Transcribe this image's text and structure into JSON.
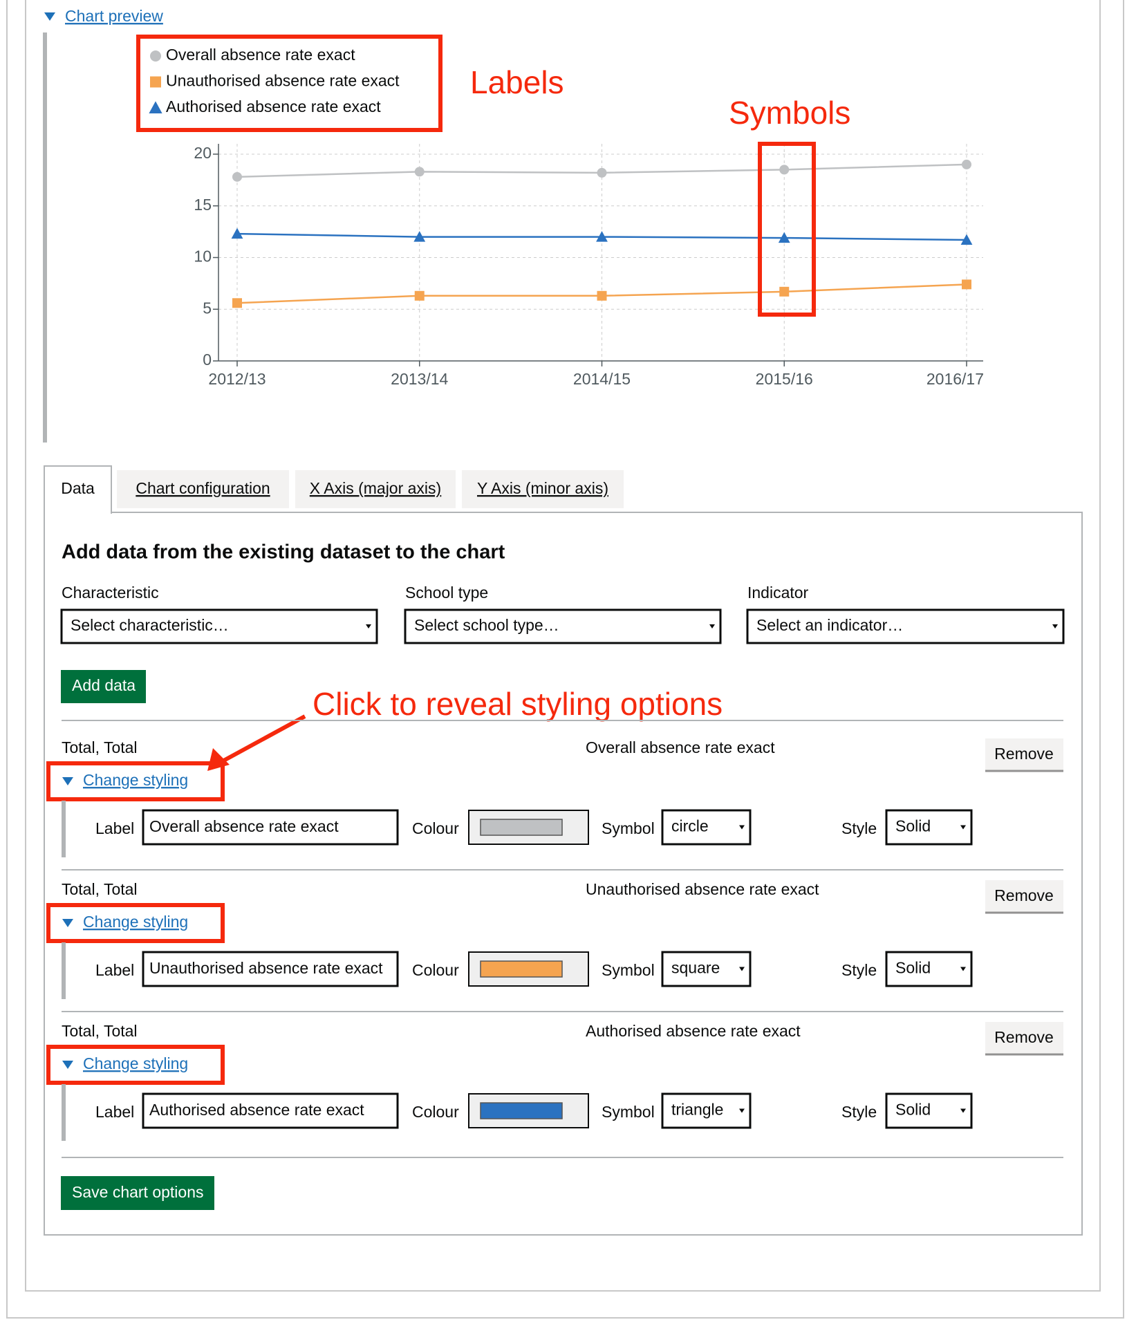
{
  "preview_link": "Chart preview",
  "chart_data": {
    "type": "line",
    "categories": [
      "2012/13",
      "2013/14",
      "2014/15",
      "2015/16",
      "2016/17"
    ],
    "series": [
      {
        "name": "Overall absence rate exact",
        "color": "#bfc1c3",
        "symbol": "circle",
        "values": [
          17.8,
          18.3,
          18.2,
          18.5,
          19.0
        ]
      },
      {
        "name": "Unauthorised absence rate exact",
        "color": "#f5a450",
        "symbol": "square",
        "values": [
          5.6,
          6.3,
          6.3,
          6.7,
          7.4
        ]
      },
      {
        "name": "Authorised absence rate exact",
        "color": "#2b72c0",
        "symbol": "triangle",
        "values": [
          12.3,
          12.0,
          12.0,
          11.9,
          11.7
        ]
      }
    ],
    "ylim": [
      0,
      21
    ],
    "yticks": [
      0,
      5,
      10,
      15,
      20
    ],
    "grid": true
  },
  "annotations": {
    "labels": "Labels",
    "symbols": "Symbols",
    "click": "Click to reveal styling options"
  },
  "tabs": [
    "Data",
    "Chart configuration",
    "X Axis (major axis)",
    "Y Axis (minor axis)"
  ],
  "data_panel": {
    "heading": "Add data from the existing dataset to the chart",
    "fields": [
      {
        "label": "Characteristic",
        "placeholder": "Select characteristic…"
      },
      {
        "label": "School type",
        "placeholder": "Select school type…"
      },
      {
        "label": "Indicator",
        "placeholder": "Select an indicator…"
      }
    ],
    "add_button": "Add data",
    "rows": [
      {
        "filters": "Total, Total",
        "indicator": "Overall absence rate exact",
        "remove": "Remove",
        "toggle": "Change styling",
        "label_caption": "Label",
        "label": "Overall absence rate exact",
        "colour_caption": "Colour",
        "symbol_caption": "Symbol",
        "symbol": "circle",
        "style_caption": "Style",
        "style": "Solid"
      },
      {
        "filters": "Total, Total",
        "indicator": "Unauthorised absence rate exact",
        "remove": "Remove",
        "toggle": "Change styling",
        "label_caption": "Label",
        "label": "Unauthorised absence rate exact",
        "colour_caption": "Colour",
        "symbol_caption": "Symbol",
        "symbol": "square",
        "style_caption": "Style",
        "style": "Solid"
      },
      {
        "filters": "Total, Total",
        "indicator": "Authorised absence rate exact",
        "remove": "Remove",
        "toggle": "Change styling",
        "label_caption": "Label",
        "label": "Authorised absence rate exact",
        "colour_caption": "Colour",
        "symbol_caption": "Symbol",
        "symbol": "triangle",
        "style_caption": "Style",
        "style": "Solid"
      }
    ],
    "save_button": "Save chart options"
  }
}
